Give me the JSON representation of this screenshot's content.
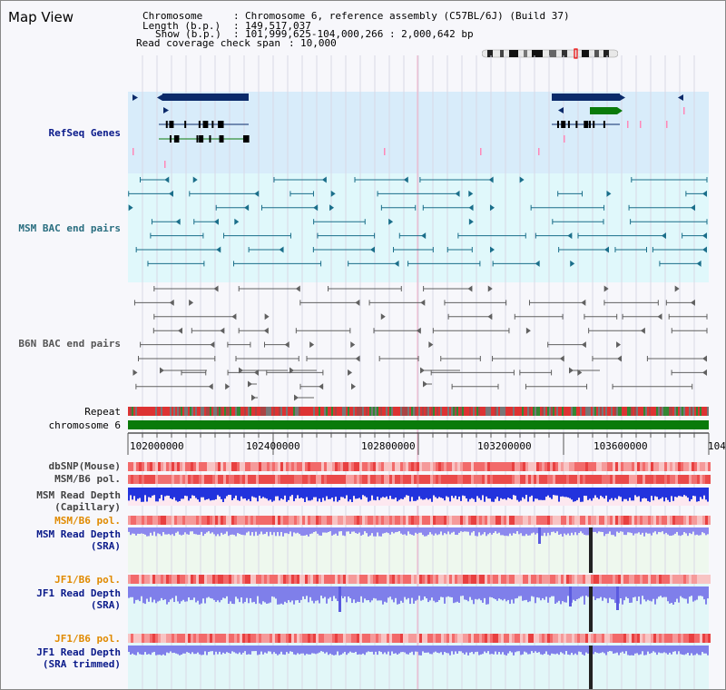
{
  "app": {
    "title": "Map View"
  },
  "header": {
    "chromosome_label": "Chromosome",
    "chromosome_value": "Chromosome 6, reference assembly (C57BL/6J) (Build 37)",
    "length_label": "Length (b.p.)",
    "length_value": "149,517,037",
    "show_label": "Show (b.p.)",
    "show_value": "101,999,625-104,000,266 : 2,000,642 bp",
    "coverage_label": "Read coverage check span",
    "coverage_value": "10,000"
  },
  "tracks": {
    "refseq": "RefSeq Genes",
    "msm_bac": "MSM BAC end pairs",
    "b6n_bac": "B6N BAC end pairs",
    "repeat": "Repeat",
    "chromosome": "chromosome 6",
    "dbsnp": "dbSNP(Mouse)",
    "msm_b6_pol": "MSM/B6 pol.",
    "msm_depth_cap_1": "MSM Read Depth",
    "msm_depth_cap_2": "(Capillary)",
    "msm_b6_pol2": "MSM/B6 pol.",
    "msm_depth_sra_1": "MSM Read Depth",
    "msm_depth_sra_2": "(SRA)",
    "jf1_pol": "JF1/B6 pol.",
    "jf1_depth_1": "JF1 Read Depth",
    "jf1_depth_2": "(SRA)",
    "jf1_pol2": "JF1/B6 pol.",
    "jf1_trim_1": "JF1 Read Depth",
    "jf1_trim_2": "(SRA trimmed)"
  },
  "ruler": {
    "ticks": [
      "102000000",
      "102400000",
      "102800000",
      "103200000",
      "103600000",
      "104"
    ]
  },
  "colors": {
    "refseq_bg": "#d8ecfa",
    "msm_bg": "#e0f8fb",
    "gene_dark": "#0a2a6a",
    "gene_green": "#0a7a0a",
    "bac_teal": "#1a6e8a",
    "bac_gray": "#606060",
    "chrom_green": "#0a7a0a",
    "label_orange": "#e08a00",
    "label_navy": "#0a1a8a",
    "label_dark": "#333333"
  }
}
